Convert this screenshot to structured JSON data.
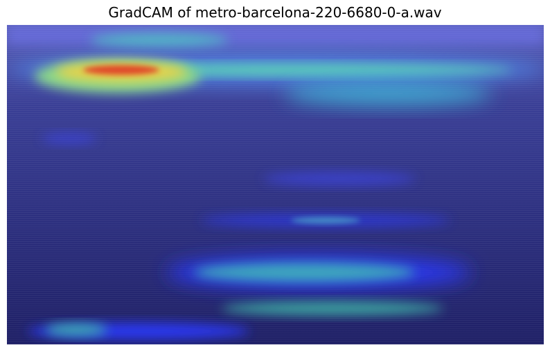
{
  "title": "GradCAM of metro-barcelona-220-6680-0-a.wav"
}
